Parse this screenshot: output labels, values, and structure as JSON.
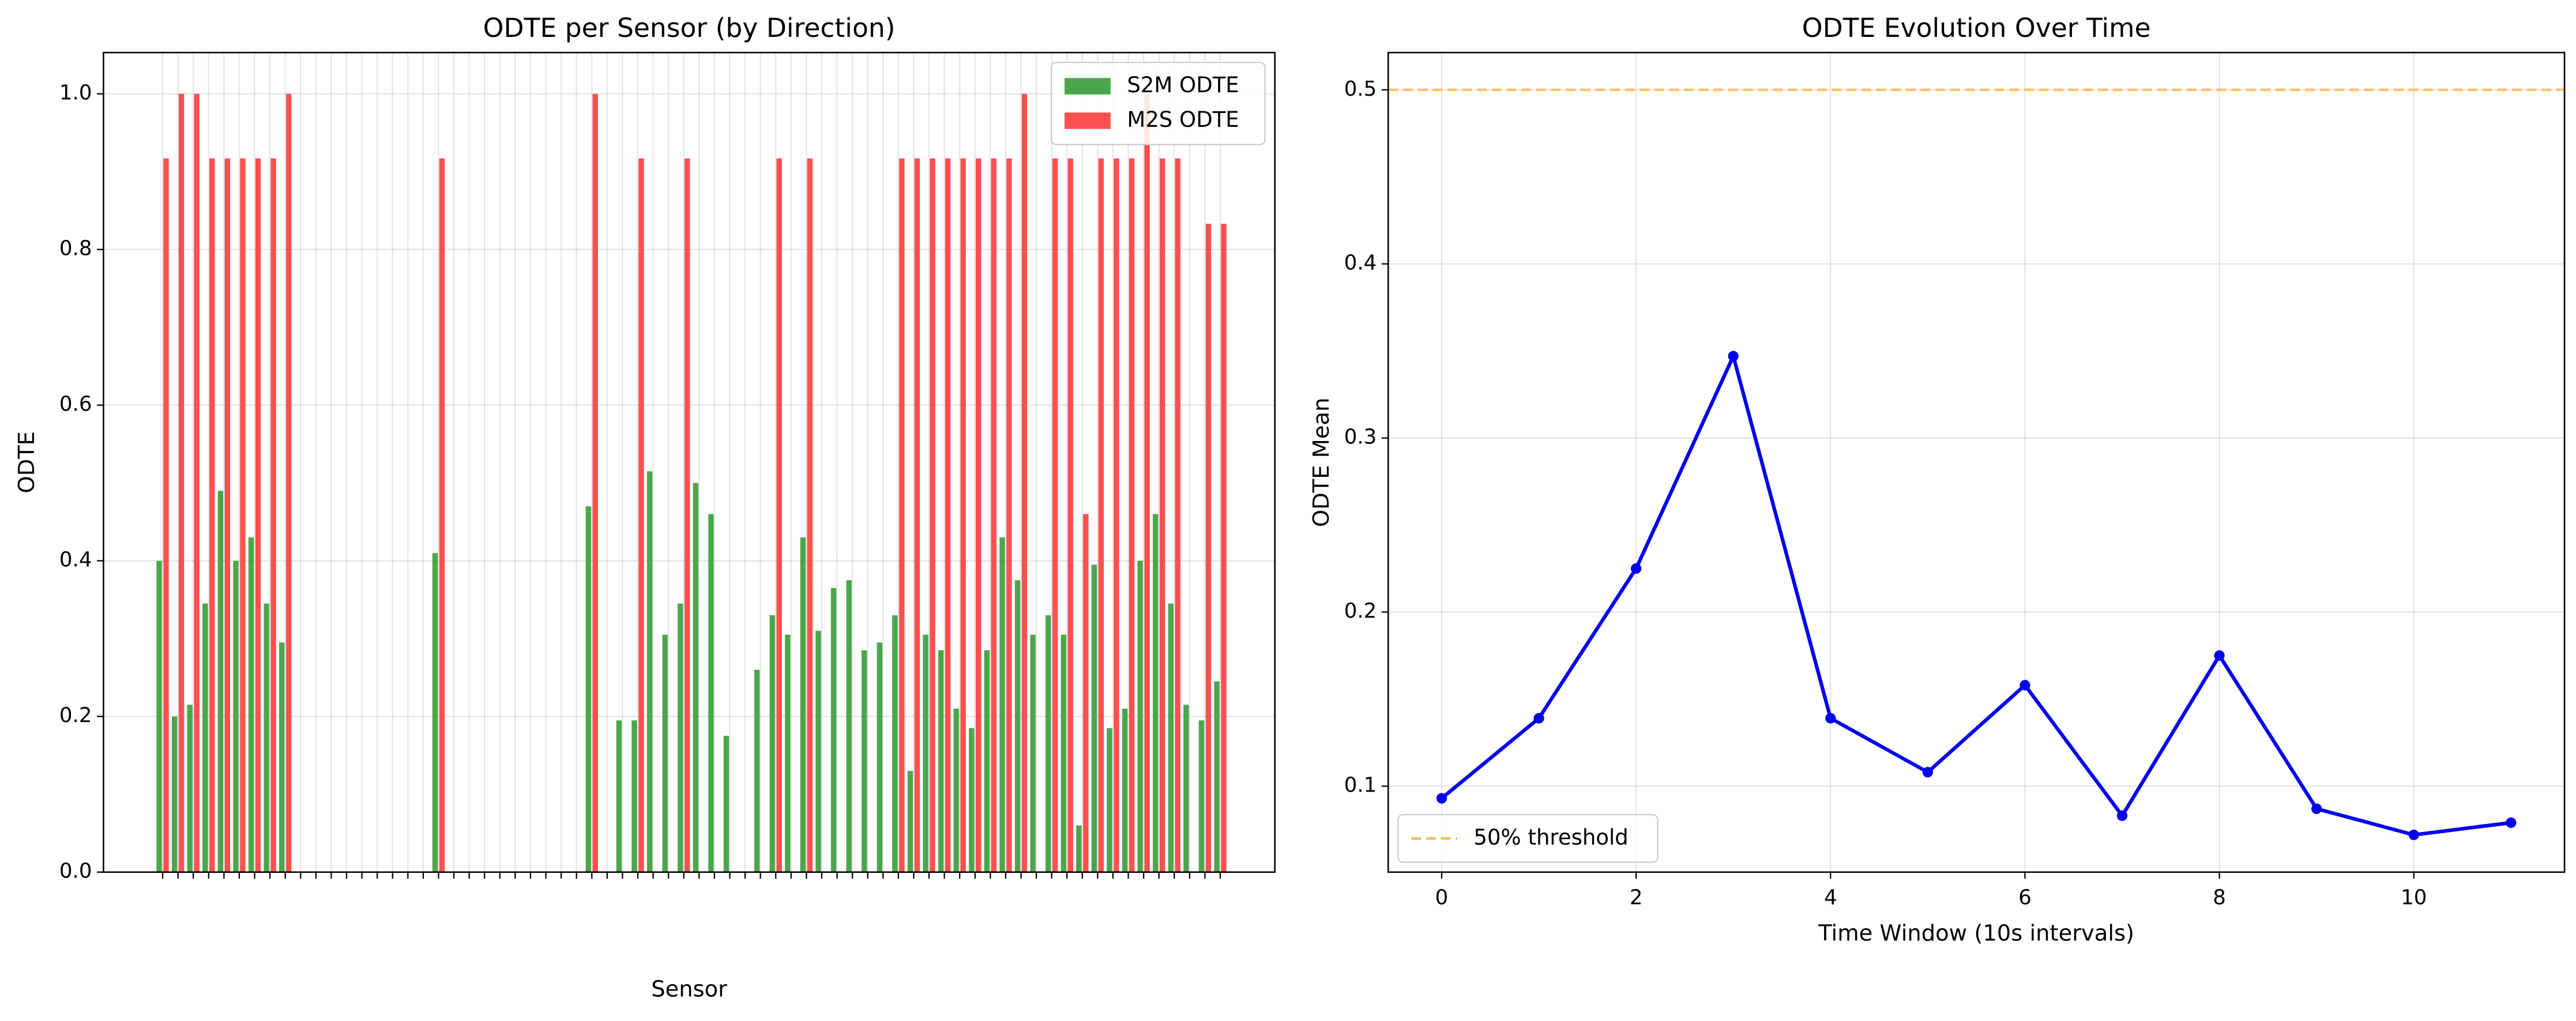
{
  "chart_data": [
    {
      "type": "bar",
      "title": "ODTE per Sensor (by Direction)",
      "xlabel": "Sensor",
      "ylabel": "ODTE",
      "categories": [
        null,
        null,
        null,
        null,
        null,
        null,
        null,
        null,
        null,
        null,
        null,
        null,
        null,
        null,
        null,
        null,
        null,
        null,
        null,
        null,
        null,
        null,
        null,
        null,
        null,
        null,
        null,
        null,
        null,
        null,
        null,
        null,
        null,
        null,
        null,
        null,
        null,
        null,
        null,
        null,
        null,
        null,
        null,
        null,
        null,
        null,
        null,
        null,
        null,
        null,
        null,
        null,
        null,
        null,
        null,
        null,
        null,
        null,
        null,
        null,
        null,
        null,
        null,
        null,
        null,
        null,
        null,
        null,
        null,
        null
      ],
      "series": [
        {
          "name": "S2M ODTE",
          "color": "#4ca64c",
          "values": [
            0.4,
            0.2,
            0.215,
            0.345,
            0.49,
            0.4,
            0.43,
            0.345,
            0.295,
            0,
            0,
            0,
            0,
            0,
            0,
            0,
            0,
            0,
            0.41,
            0,
            0,
            0,
            0,
            0,
            0,
            0,
            0,
            0,
            0.47,
            0,
            0.195,
            0.195,
            0.515,
            0.305,
            0.345,
            0.5,
            0.46,
            0.175,
            0,
            0.26,
            0.33,
            0.305,
            0.43,
            0.31,
            0.365,
            0.375,
            0.285,
            0.295,
            0.33,
            0.13,
            0.305,
            0.285,
            0.21,
            0.185,
            0.285,
            0.43,
            0.375,
            0.305,
            0.33,
            0.305,
            0.06,
            0.395,
            0.185,
            0.21,
            0.4,
            0.46,
            0.345,
            0.215,
            0.195,
            0.245
          ]
        },
        {
          "name": "M2S ODTE",
          "color": "#ff5050",
          "values": [
            0.917,
            1.0,
            1.0,
            0.917,
            0.917,
            0.917,
            0.917,
            0.917,
            1.0,
            0,
            0,
            0,
            0,
            0,
            0,
            0,
            0,
            0,
            0.917,
            0,
            0,
            0,
            0,
            0,
            0,
            0,
            0,
            0,
            1.0,
            0,
            0,
            0.917,
            0,
            0,
            0.917,
            0,
            0,
            0,
            0,
            0,
            0.917,
            0,
            0.917,
            0,
            0,
            0,
            0,
            0,
            0.917,
            0.917,
            0.917,
            0.917,
            0.917,
            0.917,
            0.917,
            0.917,
            1.0,
            0,
            0.917,
            0.917,
            0.46,
            0.917,
            0.917,
            0.917,
            1.0,
            0.917,
            0.917,
            0,
            0.833,
            0.833
          ]
        }
      ],
      "ylim": [
        0,
        1.053
      ],
      "yticks": [
        {
          "value": 0,
          "label": "0.0"
        },
        0.2,
        0.4,
        0.6,
        0.8,
        {
          "value": 1,
          "label": "1.0"
        }
      ],
      "grid": true,
      "legend": "upper right"
    },
    {
      "type": "line",
      "title": "ODTE Evolution Over Time",
      "xlabel": "Time Window (10s intervals)",
      "ylabel": "ODTE Mean",
      "x": [
        0,
        1,
        2,
        3,
        4,
        5,
        6,
        7,
        8,
        9,
        10,
        11
      ],
      "values": [
        0.093,
        0.139,
        0.225,
        0.347,
        0.139,
        0.108,
        0.158,
        0.083,
        0.175,
        0.087,
        0.072,
        0.079
      ],
      "color": "#0000ee",
      "threshold": {
        "value": 0.5,
        "label": "50% threshold",
        "color": "#ffb84d"
      },
      "xlim": [
        -0.55,
        11.55
      ],
      "xticks": [
        0,
        2,
        4,
        6,
        8,
        10
      ],
      "ylim": [
        0.0506,
        0.5214
      ],
      "yticks": [
        0.1,
        0.2,
        0.3,
        0.4,
        0.5
      ],
      "grid": true,
      "legend": "lower left"
    }
  ]
}
